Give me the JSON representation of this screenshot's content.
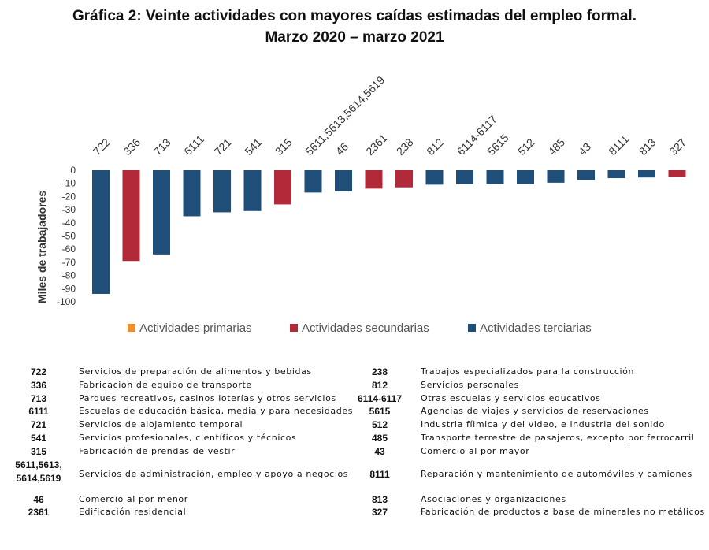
{
  "title": {
    "line1": "Gráfica 2: Veinte actividades con mayores caídas estimadas del empleo formal.",
    "line2": "Marzo 2020 – marzo 2021"
  },
  "chart_data": {
    "type": "bar",
    "ylabel": "Miles de trabajadores",
    "ylim": [
      -100,
      0
    ],
    "yticks": [
      0,
      -10,
      -20,
      -30,
      -40,
      -50,
      -60,
      -70,
      -80,
      -90,
      -100
    ],
    "categories": [
      "722",
      "336",
      "713",
      "6111",
      "721",
      "541",
      "315",
      "5611,5613,5614,5619",
      "46",
      "2361",
      "238",
      "812",
      "6114-6117",
      "5615",
      "512",
      "485",
      "43",
      "8111",
      "813",
      "327"
    ],
    "values": [
      -94,
      -69,
      -64,
      -35,
      -32,
      -31,
      -26,
      -17,
      -16,
      -14,
      -13,
      -11,
      -10.5,
      -10.5,
      -10.5,
      -9.5,
      -7.5,
      -6,
      -5.5,
      -5
    ],
    "groups": [
      "terciarias",
      "secundarias",
      "terciarias",
      "terciarias",
      "terciarias",
      "terciarias",
      "secundarias",
      "terciarias",
      "terciarias",
      "secundarias",
      "secundarias",
      "terciarias",
      "terciarias",
      "terciarias",
      "terciarias",
      "terciarias",
      "terciarias",
      "terciarias",
      "terciarias",
      "secundarias"
    ],
    "legend": {
      "placement": "bottom",
      "entries": [
        {
          "key": "primarias",
          "label": "Actividades primarias",
          "color": "#f28e2b"
        },
        {
          "key": "secundarias",
          "label": "Actividades secundarias",
          "color": "#b22a3a"
        },
        {
          "key": "terciarias",
          "label": "Actividades terciarias",
          "color": "#1f4e79"
        }
      ]
    },
    "grid": false
  },
  "table": {
    "left": [
      {
        "code": "722",
        "desc": "Servicios de preparación de alimentos y bebidas"
      },
      {
        "code": "336",
        "desc": "Fabricación de equipo de transporte"
      },
      {
        "code": "713",
        "desc": "Parques recreativos, casinos loterías y otros servicios"
      },
      {
        "code": "6111",
        "desc": "Escuelas de educación básica, media y para necesidades"
      },
      {
        "code": "721",
        "desc": "Servicios de alojamiento temporal"
      },
      {
        "code": "541",
        "desc": "Servicios profesionales, científicos y técnicos"
      },
      {
        "code": "315",
        "desc": "Fabricación de prendas de vestir"
      },
      {
        "code": "5611,5613,\n5614,5619",
        "desc": "Servicios de administración, empleo y apoyo a negocios"
      },
      {
        "code": "46",
        "desc": "Comercio al por menor"
      },
      {
        "code": "2361",
        "desc": "Edificación residencial"
      }
    ],
    "right": [
      {
        "code": "238",
        "desc": "Trabajos especializados para la construcción"
      },
      {
        "code": "812",
        "desc": "Servicios personales"
      },
      {
        "code": "6114-6117",
        "desc": "Otras escuelas y servicios educativos"
      },
      {
        "code": "5615",
        "desc": "Agencias de viajes y servicios de reservaciones"
      },
      {
        "code": "512",
        "desc": "Industria fílmica y del video, e industria del sonido"
      },
      {
        "code": "485",
        "desc": "Transporte terrestre de pasajeros, excepto por ferrocarril"
      },
      {
        "code": "43",
        "desc": "Comercio al por mayor"
      },
      {
        "code": "8111",
        "desc": "Reparación y mantenimiento de automóviles y camiones"
      },
      {
        "code": "813",
        "desc": "Asociaciones y organizaciones"
      },
      {
        "code": "327",
        "desc": "Fabricación de productos a base de minerales no metálicos"
      }
    ]
  }
}
